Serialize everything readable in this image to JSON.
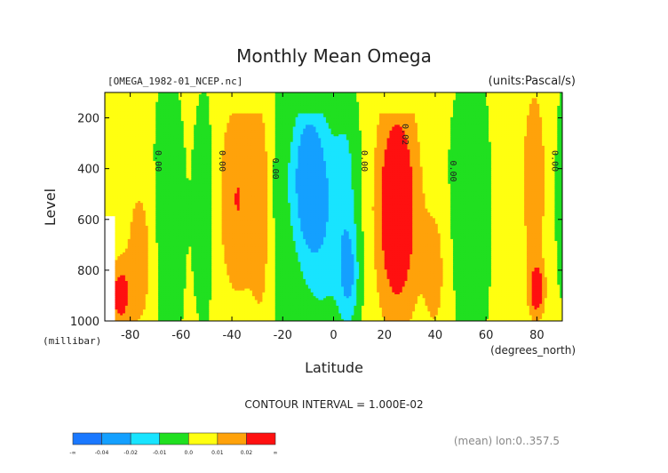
{
  "chart_data": {
    "type": "heatmap",
    "title": "Monthly Mean Omega",
    "file_label": "[OMEGA_1982-01_NCEP.nc]",
    "units_label": "(units:Pascal/s)",
    "ylabel": "Level",
    "ylabel_units": "(millibar)",
    "xlabel": "Latitude",
    "xlabel_units": "(degrees_north)",
    "xlim": [
      -90,
      90
    ],
    "ylim": [
      1000,
      100
    ],
    "x_ticks": [
      "-80",
      "-60",
      "-40",
      "-20",
      "0",
      "20",
      "40",
      "60",
      "80"
    ],
    "x_tick_values": [
      -80,
      -60,
      -40,
      -20,
      0,
      20,
      40,
      60,
      80
    ],
    "y_ticks": [
      "200",
      "400",
      "600",
      "800",
      "1000"
    ],
    "y_tick_values": [
      200,
      400,
      600,
      800,
      1000
    ],
    "contour_interval": "CONTOUR INTERVAL = 1.000E-02",
    "mean_note": "(mean) lon:0..357.5",
    "colorbar": {
      "colors": [
        "#1a78ff",
        "#14a0ff",
        "#18e4ff",
        "#20e020",
        "#ffff10",
        "#ffa20a",
        "#ff1010"
      ],
      "labels": [
        "-∞",
        "-0.04",
        "-0.02",
        "-0.01",
        "0.0",
        "0.01",
        "0.02",
        "∞"
      ]
    },
    "band_levels": [
      -0.04,
      -0.02,
      -0.01,
      0.0,
      0.01,
      0.02
    ],
    "contour_labels": [
      {
        "text": "0.00",
        "lat": -70,
        "level": 370
      },
      {
        "text": "0.00",
        "lat": -45,
        "level": 370
      },
      {
        "text": "0.00",
        "lat": -24,
        "level": 400
      },
      {
        "text": "0.00",
        "lat": 11,
        "level": 370
      },
      {
        "text": "0.02",
        "lat": 27,
        "level": 265
      },
      {
        "text": "0.00",
        "lat": 46,
        "level": 410
      },
      {
        "text": "0.00",
        "lat": 86,
        "level": 370
      }
    ]
  }
}
